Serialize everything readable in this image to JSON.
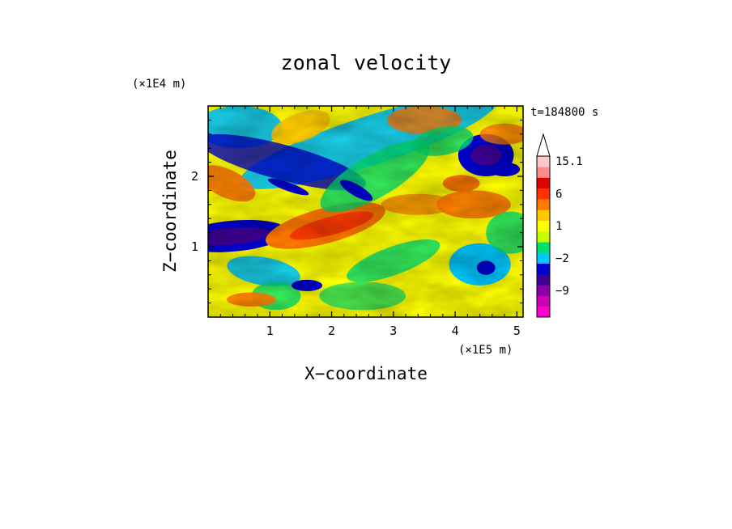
{
  "chart_data": {
    "type": "heatmap",
    "title": "zonal velocity",
    "xlabel": "X−coordinate",
    "ylabel": "Z−coordinate",
    "x_unit": "(×1E5 m)",
    "y_unit": "(×1E4 m)",
    "time_label": "t=184800 s",
    "xlim": [
      0,
      5.1
    ],
    "ylim": [
      0,
      3.0
    ],
    "x_ticks": [
      "1",
      "2",
      "3",
      "4",
      "5"
    ],
    "y_ticks": [
      "1",
      "2"
    ],
    "colorbar": {
      "levels": [
        -15.1,
        -12,
        -9,
        -6,
        -3,
        -2,
        -1,
        0,
        1,
        2,
        3,
        6,
        9,
        12,
        15.1
      ],
      "colors": [
        "#ff00cc",
        "#cc00b0",
        "#8a00a8",
        "#3c0096",
        "#0000d0",
        "#00c8ff",
        "#00e070",
        "#c8ff00",
        "#ffff00",
        "#ffc800",
        "#ff7800",
        "#ff3300",
        "#e00000",
        "#ff8c8c",
        "#ffc8c8"
      ],
      "labels": [
        {
          "value": 15.1,
          "text": "15.1"
        },
        {
          "value": 6,
          "text": "6"
        },
        {
          "value": 1,
          "text": "1"
        },
        {
          "value": -2,
          "text": "−2"
        },
        {
          "value": -9,
          "text": "−9"
        }
      ]
    }
  }
}
